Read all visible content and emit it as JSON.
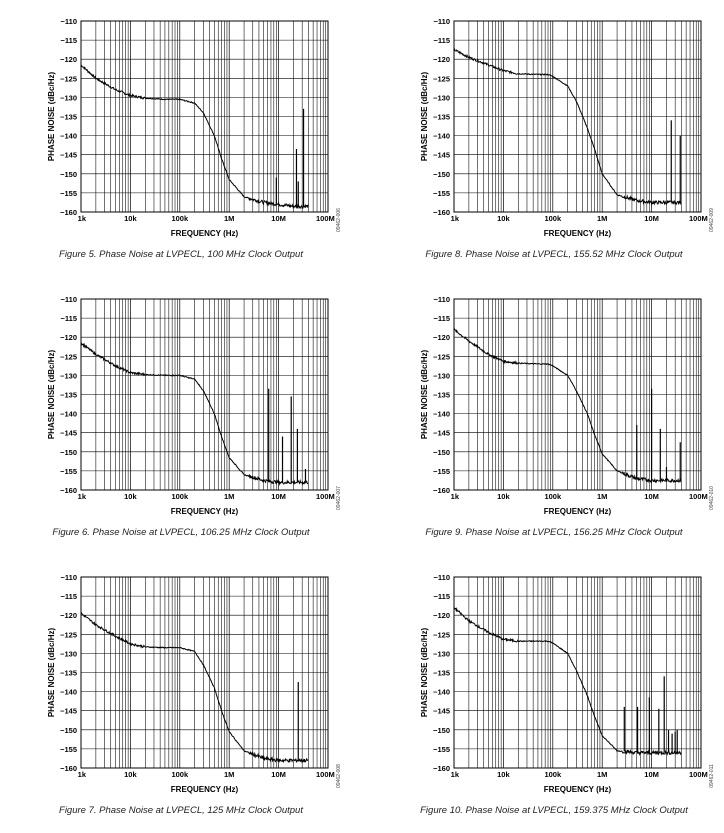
{
  "chart_data": [
    {
      "type": "line",
      "caption": "Figure 5. Phase Noise at LVPECL, 100 MHz Clock Output",
      "figure_id": "09462-006",
      "xlabel": "FREQUENCY (Hz)",
      "ylabel": "PHASE NOISE (dBc/Hz)",
      "xscale": "log",
      "xlim": [
        1000,
        100000000
      ],
      "ylim": [
        -160,
        -110
      ],
      "x_ticks": [
        {
          "value": 1000,
          "label": "1k"
        },
        {
          "value": 10000,
          "label": "10k"
        },
        {
          "value": 100000,
          "label": "100k"
        },
        {
          "value": 1000000,
          "label": "1M"
        },
        {
          "value": 10000000,
          "label": "10M"
        },
        {
          "value": 100000000,
          "label": "100M"
        }
      ],
      "y_ticks": [
        -110,
        -115,
        -120,
        -125,
        -130,
        -135,
        -140,
        -145,
        -150,
        -155,
        -160
      ],
      "grid": true,
      "series": [
        {
          "x": [
            1000,
            2000,
            5000,
            10000,
            20000,
            50000,
            100000,
            200000,
            300000,
            500000,
            700000,
            1000000,
            2000000,
            5000000,
            10000000,
            20000000,
            40000000
          ],
          "y": [
            -121.5,
            -125,
            -128,
            -129.5,
            -130.2,
            -130.5,
            -130.5,
            -131.5,
            -134,
            -140,
            -146,
            -151.5,
            -156,
            -157.5,
            -158,
            -158.5,
            -158.5
          ]
        }
      ],
      "spurs": [
        {
          "x": 9000000,
          "y": -151
        },
        {
          "x": 23000000,
          "y": -143.5
        },
        {
          "x": 25000000,
          "y": -152
        },
        {
          "x": 32000000,
          "y": -133
        }
      ]
    },
    {
      "type": "line",
      "caption": "Figure 8. Phase Noise at LVPECL, 155.52 MHz Clock Output",
      "figure_id": "09462-009",
      "xlabel": "FREQUENCY (Hz)",
      "ylabel": "PHASE NOISE (dBc/Hz)",
      "xscale": "log",
      "xlim": [
        1000,
        100000000
      ],
      "ylim": [
        -160,
        -110
      ],
      "x_ticks": [
        {
          "value": 1000,
          "label": "1k"
        },
        {
          "value": 10000,
          "label": "10k"
        },
        {
          "value": 100000,
          "label": "100k"
        },
        {
          "value": 1000000,
          "label": "1M"
        },
        {
          "value": 10000000,
          "label": "10M"
        },
        {
          "value": 100000000,
          "label": "100M"
        }
      ],
      "y_ticks": [
        -110,
        -115,
        -120,
        -125,
        -130,
        -135,
        -140,
        -145,
        -150,
        -155,
        -160
      ],
      "grid": true,
      "series": [
        {
          "x": [
            1000,
            2000,
            5000,
            10000,
            20000,
            50000,
            80000,
            100000,
            200000,
            300000,
            500000,
            700000,
            1000000,
            2000000,
            5000000,
            10000000,
            20000000,
            40000000
          ],
          "y": [
            -117.5,
            -119.5,
            -121.5,
            -123,
            -123.8,
            -124,
            -124,
            -124.5,
            -127,
            -131,
            -138,
            -143.5,
            -150,
            -155.5,
            -157,
            -157.5,
            -157.5,
            -157.5
          ]
        }
      ],
      "spurs": [
        {
          "x": 25000000,
          "y": -136
        },
        {
          "x": 38000000,
          "y": -140
        }
      ]
    },
    {
      "type": "line",
      "caption": "Figure 6. Phase Noise at LVPECL, 106.25 MHz Clock Output",
      "figure_id": "09462-007",
      "xlabel": "FREQUENCY (Hz)",
      "ylabel": "PHASE NOISE (dBc/Hz)",
      "xscale": "log",
      "xlim": [
        1000,
        100000000
      ],
      "ylim": [
        -160,
        -110
      ],
      "x_ticks": [
        {
          "value": 1000,
          "label": "1k"
        },
        {
          "value": 10000,
          "label": "10k"
        },
        {
          "value": 100000,
          "label": "100k"
        },
        {
          "value": 1000000,
          "label": "1M"
        },
        {
          "value": 10000000,
          "label": "10M"
        },
        {
          "value": 100000000,
          "label": "100M"
        }
      ],
      "y_ticks": [
        -110,
        -115,
        -120,
        -125,
        -130,
        -135,
        -140,
        -145,
        -150,
        -155,
        -160
      ],
      "grid": true,
      "series": [
        {
          "x": [
            1000,
            2000,
            5000,
            10000,
            20000,
            50000,
            100000,
            200000,
            300000,
            500000,
            700000,
            1000000,
            2000000,
            5000000,
            10000000,
            20000000,
            40000000
          ],
          "y": [
            -121.5,
            -124.5,
            -127.5,
            -129.3,
            -129.8,
            -130,
            -130,
            -131,
            -134,
            -140,
            -146,
            -151.5,
            -156,
            -157.5,
            -158,
            -158,
            -158
          ]
        }
      ],
      "spurs": [
        {
          "x": 6300000,
          "y": -133.5
        },
        {
          "x": 12000000,
          "y": -146
        },
        {
          "x": 18000000,
          "y": -135.5
        },
        {
          "x": 24000000,
          "y": -144
        },
        {
          "x": 35000000,
          "y": -154.5
        }
      ]
    },
    {
      "type": "line",
      "caption": "Figure 9. Phase Noise at LVPECL, 156.25 MHz Clock Output",
      "figure_id": "09462-010",
      "xlabel": "FREQUENCY (Hz)",
      "ylabel": "PHASE NOISE (dBc/Hz)",
      "xscale": "log",
      "xlim": [
        1000,
        100000000
      ],
      "ylim": [
        -160,
        -110
      ],
      "x_ticks": [
        {
          "value": 1000,
          "label": "1k"
        },
        {
          "value": 10000,
          "label": "10k"
        },
        {
          "value": 100000,
          "label": "100k"
        },
        {
          "value": 1000000,
          "label": "1M"
        },
        {
          "value": 10000000,
          "label": "10M"
        },
        {
          "value": 100000000,
          "label": "100M"
        }
      ],
      "y_ticks": [
        -110,
        -115,
        -120,
        -125,
        -130,
        -135,
        -140,
        -145,
        -150,
        -155,
        -160
      ],
      "grid": true,
      "series": [
        {
          "x": [
            1000,
            2000,
            5000,
            10000,
            20000,
            50000,
            80000,
            100000,
            200000,
            300000,
            500000,
            700000,
            1000000,
            2000000,
            5000000,
            10000000,
            20000000,
            40000000
          ],
          "y": [
            -118,
            -121,
            -124.5,
            -126.3,
            -126.8,
            -127,
            -127,
            -127.5,
            -130,
            -134,
            -140,
            -145.5,
            -150.5,
            -155,
            -157,
            -157.5,
            -157.5,
            -157.5
          ]
        }
      ],
      "spurs": [
        {
          "x": 5000000,
          "y": -143
        },
        {
          "x": 10000000,
          "y": -133.5
        },
        {
          "x": 15000000,
          "y": -144
        },
        {
          "x": 20000000,
          "y": -154
        },
        {
          "x": 38000000,
          "y": -147.5
        }
      ]
    },
    {
      "type": "line",
      "caption": "Figure 7. Phase Noise at LVPECL, 125 MHz Clock Output",
      "figure_id": "09462-008",
      "xlabel": "FREQUENCY (Hz)",
      "ylabel": "PHASE NOISE (dBc/Hz)",
      "xscale": "log",
      "xlim": [
        1000,
        100000000
      ],
      "ylim": [
        -160,
        -110
      ],
      "x_ticks": [
        {
          "value": 1000,
          "label": "1k"
        },
        {
          "value": 10000,
          "label": "10k"
        },
        {
          "value": 100000,
          "label": "100k"
        },
        {
          "value": 1000000,
          "label": "1M"
        },
        {
          "value": 10000000,
          "label": "10M"
        },
        {
          "value": 100000000,
          "label": "100M"
        }
      ],
      "y_ticks": [
        -110,
        -115,
        -120,
        -125,
        -130,
        -135,
        -140,
        -145,
        -150,
        -155,
        -160
      ],
      "grid": true,
      "series": [
        {
          "x": [
            1000,
            2000,
            5000,
            10000,
            20000,
            50000,
            100000,
            200000,
            300000,
            500000,
            700000,
            1000000,
            2000000,
            5000000,
            10000000,
            20000000,
            40000000
          ],
          "y": [
            -119.5,
            -122.5,
            -125.5,
            -127.5,
            -128.3,
            -128.5,
            -128.5,
            -129.5,
            -133,
            -139,
            -145,
            -150.5,
            -155.5,
            -157.5,
            -158,
            -158,
            -158
          ]
        }
      ],
      "spurs": [
        {
          "x": 25000000,
          "y": -137.5
        }
      ]
    },
    {
      "type": "line",
      "caption": "Figure 10. Phase Noise at LVPECL, 159.375 MHz Clock Output",
      "figure_id": "09462-011",
      "xlabel": "FREQUENCY (Hz)",
      "ylabel": "PHASE NOISE (dBc/Hz)",
      "xscale": "log",
      "xlim": [
        1000,
        100000000
      ],
      "ylim": [
        -160,
        -110
      ],
      "x_ticks": [
        {
          "value": 1000,
          "label": "1k"
        },
        {
          "value": 10000,
          "label": "10k"
        },
        {
          "value": 100000,
          "label": "100k"
        },
        {
          "value": 1000000,
          "label": "1M"
        },
        {
          "value": 10000000,
          "label": "10M"
        },
        {
          "value": 100000000,
          "label": "100M"
        }
      ],
      "y_ticks": [
        -110,
        -115,
        -120,
        -125,
        -130,
        -135,
        -140,
        -145,
        -150,
        -155,
        -160
      ],
      "grid": true,
      "series": [
        {
          "x": [
            1000,
            2000,
            5000,
            10000,
            20000,
            50000,
            80000,
            100000,
            200000,
            300000,
            500000,
            700000,
            1000000,
            2000000,
            5000000,
            10000000,
            20000000,
            40000000
          ],
          "y": [
            -118,
            -121.5,
            -124.5,
            -126.3,
            -126.8,
            -126.8,
            -126.8,
            -127.3,
            -130,
            -134.5,
            -141,
            -146.5,
            -151.5,
            -155.5,
            -156,
            -156,
            -156,
            -156
          ]
        }
      ],
      "spurs": [
        {
          "x": 2800000,
          "y": -144
        },
        {
          "x": 5200000,
          "y": -144
        },
        {
          "x": 9000000,
          "y": -141.5
        },
        {
          "x": 14000000,
          "y": -144.5
        },
        {
          "x": 18000000,
          "y": -136
        },
        {
          "x": 22000000,
          "y": -150
        },
        {
          "x": 26000000,
          "y": -151
        },
        {
          "x": 30000000,
          "y": -150.5
        },
        {
          "x": 33000000,
          "y": -150
        }
      ]
    }
  ]
}
